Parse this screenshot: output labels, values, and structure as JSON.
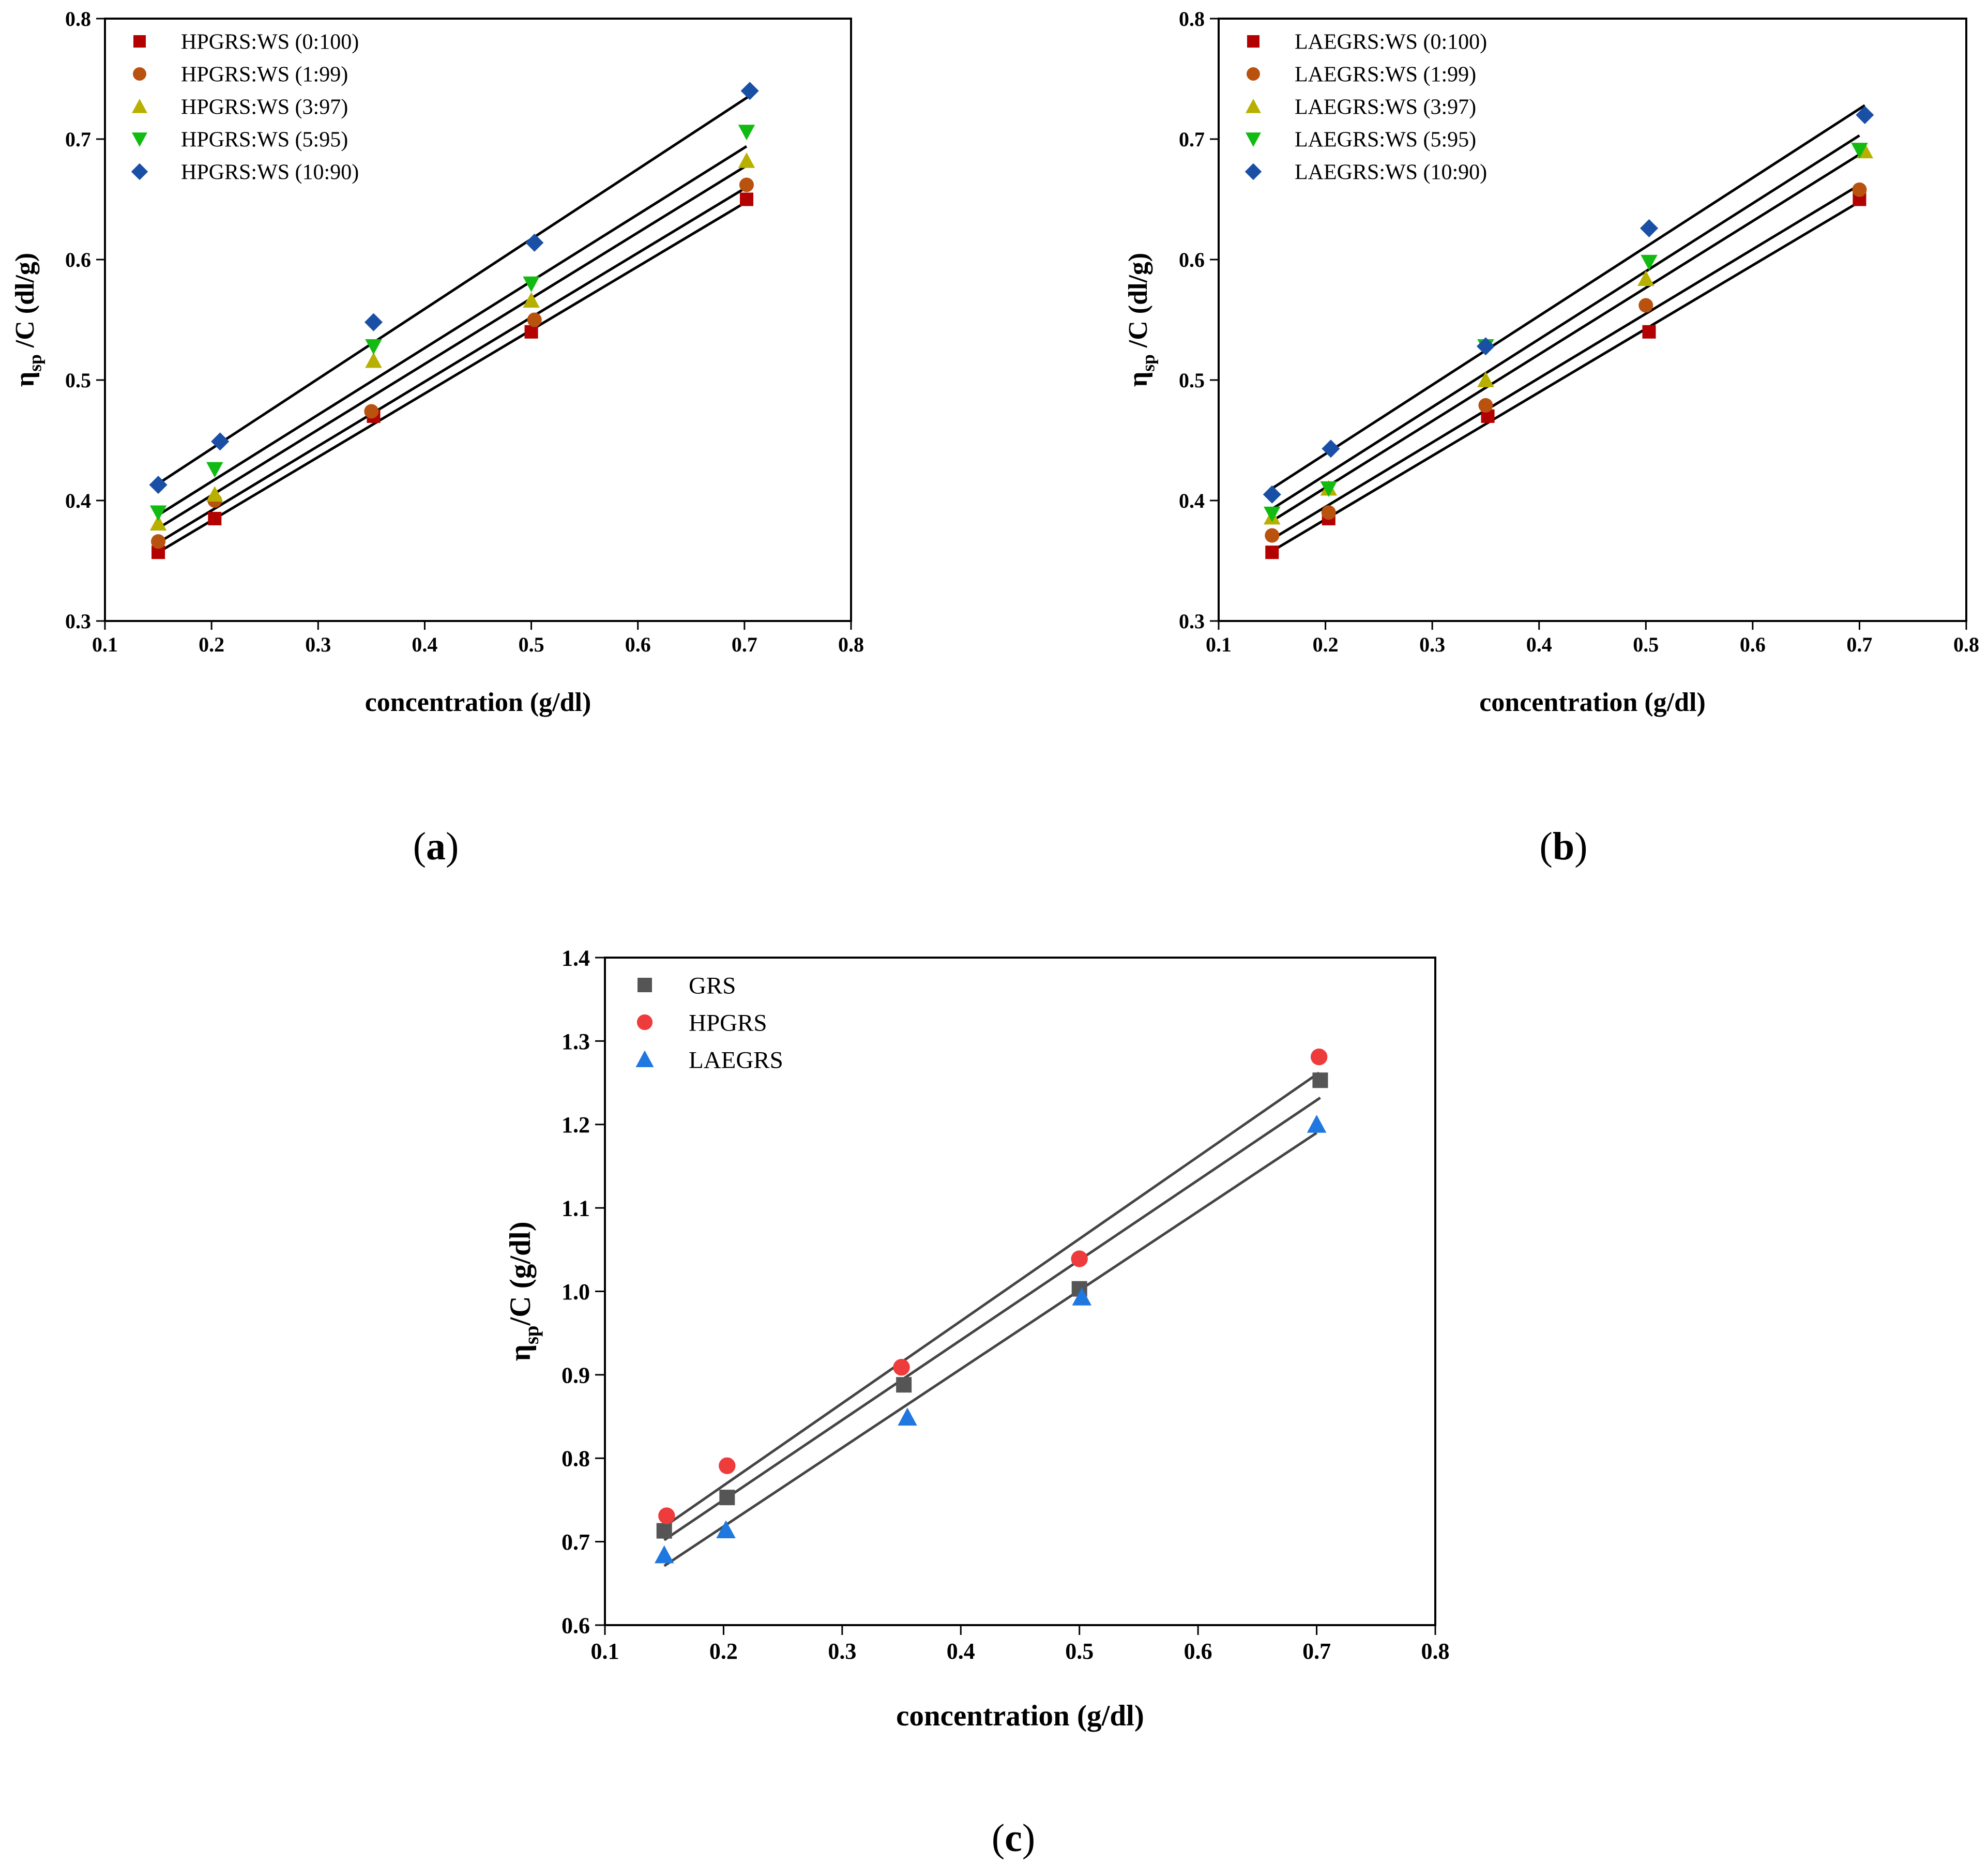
{
  "panels": [
    {
      "caption_open": "(",
      "caption_letter": "a",
      "caption_close": ")"
    },
    {
      "caption_open": "(",
      "caption_letter": "b",
      "caption_close": ")"
    },
    {
      "caption_open": "(",
      "caption_letter": "c",
      "caption_close": ")"
    }
  ],
  "chart_data": [
    {
      "type": "scatter",
      "panel": "a",
      "xlabel": "concentration (g/dl)",
      "ylabel": {
        "main": "η",
        "sub": "sp",
        "rest": " /C (dl/g)"
      },
      "xlim": [
        0.1,
        0.8
      ],
      "ylim": [
        0.3,
        0.8
      ],
      "xticks": [
        "0.1",
        "0.2",
        "0.3",
        "0.4",
        "0.5",
        "0.6",
        "0.7",
        "0.8"
      ],
      "yticks": [
        "0.3",
        "0.4",
        "0.5",
        "0.6",
        "0.7",
        "0.8"
      ],
      "fit_lines": true,
      "legend_position": "top-left",
      "series": [
        {
          "name": "HPGRS:WS (0:100)",
          "marker": "square",
          "color": "#b30000",
          "x": [
            0.15,
            0.203,
            0.352,
            0.5,
            0.702
          ],
          "y": [
            0.357,
            0.385,
            0.47,
            0.54,
            0.65
          ],
          "fit": [
            0.357,
            0.648
          ]
        },
        {
          "name": "HPGRS:WS (1:99)",
          "marker": "circle",
          "color": "#b8520e",
          "x": [
            0.15,
            0.203,
            0.35,
            0.503,
            0.702
          ],
          "y": [
            0.366,
            0.4,
            0.474,
            0.55,
            0.662
          ],
          "fit": [
            0.365,
            0.66
          ]
        },
        {
          "name": "HPGRS:WS (3:97)",
          "marker": "triangle-up",
          "color": "#b8b000",
          "x": [
            0.15,
            0.203,
            0.352,
            0.5,
            0.702
          ],
          "y": [
            0.381,
            0.405,
            0.516,
            0.566,
            0.682
          ],
          "fit": [
            0.377,
            0.678
          ]
        },
        {
          "name": "HPGRS:WS (5:95)",
          "marker": "triangle-down",
          "color": "#11bb11",
          "x": [
            0.15,
            0.203,
            0.352,
            0.5,
            0.702
          ],
          "y": [
            0.39,
            0.426,
            0.528,
            0.58,
            0.706
          ],
          "fit": [
            0.388,
            0.694
          ]
        },
        {
          "name": "HPGRS:WS (10:90)",
          "marker": "diamond",
          "color": "#1a4fa6",
          "x": [
            0.15,
            0.208,
            0.352,
            0.503,
            0.705
          ],
          "y": [
            0.413,
            0.449,
            0.548,
            0.614,
            0.74
          ],
          "fit": [
            0.414,
            0.736
          ]
        }
      ]
    },
    {
      "type": "scatter",
      "panel": "b",
      "xlabel": "concentration (g/dl)",
      "ylabel": {
        "main": "η",
        "sub": "sp",
        "rest": " /C (dl/g)"
      },
      "xlim": [
        0.1,
        0.8
      ],
      "ylim": [
        0.3,
        0.8
      ],
      "xticks": [
        "0.1",
        "0.2",
        "0.3",
        "0.4",
        "0.5",
        "0.6",
        "0.7",
        "0.8"
      ],
      "yticks": [
        "0.3",
        "0.4",
        "0.5",
        "0.6",
        "0.7",
        "0.8"
      ],
      "fit_lines": true,
      "legend_position": "top-left",
      "series": [
        {
          "name": "LAEGRS:WS (0:100)",
          "marker": "square",
          "color": "#b30000",
          "x": [
            0.15,
            0.203,
            0.352,
            0.503,
            0.7
          ],
          "y": [
            0.357,
            0.385,
            0.47,
            0.54,
            0.65
          ],
          "fit": [
            0.358,
            0.648
          ]
        },
        {
          "name": "LAEGRS:WS (1:99)",
          "marker": "circle",
          "color": "#b8520e",
          "x": [
            0.15,
            0.203,
            0.35,
            0.5,
            0.7
          ],
          "y": [
            0.371,
            0.39,
            0.479,
            0.562,
            0.658
          ],
          "fit": [
            0.368,
            0.662
          ]
        },
        {
          "name": "LAEGRS:WS (3:97)",
          "marker": "triangle-up",
          "color": "#b8b000",
          "x": [
            0.15,
            0.203,
            0.35,
            0.5,
            0.705
          ],
          "y": [
            0.386,
            0.41,
            0.5,
            0.584,
            0.69
          ],
          "fit": [
            0.383,
            0.69
          ]
        },
        {
          "name": "LAEGRS:WS (5:95)",
          "marker": "triangle-down",
          "color": "#11bb11",
          "x": [
            0.15,
            0.203,
            0.35,
            0.503,
            0.7
          ],
          "y": [
            0.389,
            0.41,
            0.528,
            0.598,
            0.691
          ],
          "fit": [
            0.393,
            0.703
          ]
        },
        {
          "name": "LAEGRS:WS (10:90)",
          "marker": "diamond",
          "color": "#1a4fa6",
          "x": [
            0.15,
            0.205,
            0.35,
            0.503,
            0.705
          ],
          "y": [
            0.405,
            0.443,
            0.528,
            0.626,
            0.72
          ],
          "fit": [
            0.41,
            0.728
          ]
        }
      ]
    },
    {
      "type": "scatter",
      "panel": "c",
      "xlabel": "concentration (g/dl)",
      "ylabel": {
        "main": "η",
        "sub": "sp",
        "rest": "/C (g/dl)"
      },
      "xlim": [
        0.1,
        0.8
      ],
      "ylim": [
        0.6,
        1.4
      ],
      "xticks": [
        "0.1",
        "0.2",
        "0.3",
        "0.4",
        "0.5",
        "0.6",
        "0.7",
        "0.8"
      ],
      "yticks": [
        "0.6",
        "0.7",
        "0.8",
        "0.9",
        "1.0",
        "1.1",
        "1.2",
        "1.3",
        "1.4"
      ],
      "fit_lines": true,
      "legend_position": "top-left",
      "series": [
        {
          "name": "GRS",
          "marker": "square",
          "color": "#555555",
          "x": [
            0.15,
            0.203,
            0.352,
            0.5,
            0.703
          ],
          "y": [
            0.713,
            0.753,
            0.888,
            1.003,
            1.253
          ],
          "fit": [
            0.702,
            1.232
          ]
        },
        {
          "name": "HPGRS",
          "marker": "circle",
          "color": "#ee3b3b",
          "x": [
            0.152,
            0.203,
            0.35,
            0.5,
            0.702
          ],
          "y": [
            0.731,
            0.791,
            0.909,
            1.039,
            1.281
          ],
          "fit": [
            0.72,
            1.262
          ]
        },
        {
          "name": "LAEGRS",
          "marker": "triangle-up",
          "color": "#1f78e0",
          "x": [
            0.15,
            0.202,
            0.355,
            0.502,
            0.7
          ],
          "y": [
            0.684,
            0.714,
            0.849,
            0.993,
            1.2
          ],
          "fit": [
            0.671,
            1.19
          ]
        }
      ]
    }
  ]
}
